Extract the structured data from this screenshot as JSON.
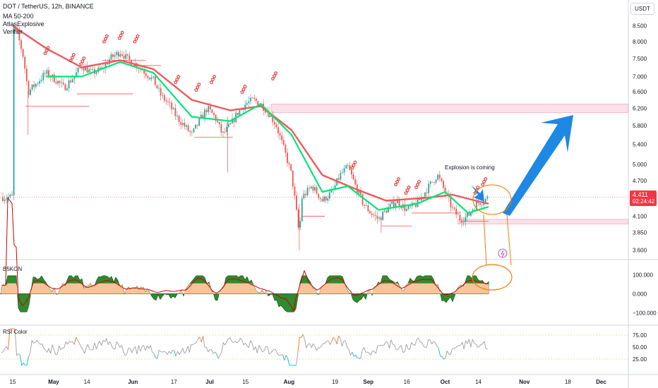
{
  "header": {
    "symbol_line": "DOT / TetherUS, 12h, BINANCE",
    "indicators": [
      "MA 50-200",
      "AtlasExplosive",
      "Verifier"
    ]
  },
  "currency_button": "USDT",
  "last_price": {
    "price": "4.411",
    "countdown": "02:24:42"
  },
  "annotation": "Explosion is coming",
  "panes": {
    "osc_title": "B5KON",
    "rsi_title": "RSI Color"
  },
  "colors": {
    "up_candle": "#26a69a",
    "down_candle": "#ef5350",
    "ma_fast": "#00e676",
    "ma_slow": "#f0585b",
    "osc_fill_pos": "#f8c49a",
    "osc_fill_green": "#2e8b2e",
    "arrow": "#1e88e5",
    "circle": "#f57c00",
    "zone": "#f8bbd0",
    "rsi_high": "#ff6d00",
    "rsi_low": "#00bcd4",
    "rsi_mid": "#9e9e9e"
  },
  "chart_data": [
    {
      "type": "candlestick",
      "timeframe": "12h",
      "y_axis": {
        "scale": "log",
        "ticks": [
          8.5,
          8.0,
          7.5,
          7.0,
          6.6,
          6.2,
          5.8,
          5.4,
          5.0,
          4.7,
          4.4,
          4.1,
          3.85,
          3.6
        ],
        "tick_labels": [
          "8.500",
          "8.000",
          "7.500",
          "7.000",
          "6.600",
          "6.200",
          "5.800",
          "5.400",
          "5.000",
          "4.700",
          "4.400",
          "4.100",
          "3.850",
          "3.600"
        ]
      },
      "x_axis": {
        "tick_labels": [
          "15",
          "May",
          "14",
          "Jun",
          "17",
          "Jul",
          "15",
          "Aug",
          "19",
          "Sep",
          "16",
          "Oct",
          "14",
          "Nov",
          "18",
          "Dec"
        ]
      },
      "close_path": [
        [
          "Apr 15",
          8.5
        ],
        [
          "Apr 17",
          8.2
        ],
        [
          "Apr 19",
          7.6
        ],
        [
          "Apr 21",
          6.6
        ],
        [
          "Apr 24",
          6.8
        ],
        [
          "Apr 28",
          7.1
        ],
        [
          "May 2",
          6.9
        ],
        [
          "May 5",
          6.7
        ],
        [
          "May 9",
          7.0
        ],
        [
          "May 12",
          7.3
        ],
        [
          "May 16",
          7.1
        ],
        [
          "May 20",
          7.2
        ],
        [
          "May 23",
          7.5
        ],
        [
          "May 27",
          7.7
        ],
        [
          "May 31",
          7.4
        ],
        [
          "Jun 3",
          7.3
        ],
        [
          "Jun 6",
          7.1
        ],
        [
          "Jun 9",
          6.9
        ],
        [
          "Jun 12",
          6.5
        ],
        [
          "Jun 15",
          6.3
        ],
        [
          "Jun 18",
          6.0
        ],
        [
          "Jun 21",
          5.8
        ],
        [
          "Jun 24",
          5.6
        ],
        [
          "Jun 27",
          5.9
        ],
        [
          "Jun 30",
          6.2
        ],
        [
          "Jul 3",
          6.0
        ],
        [
          "Jul 6",
          5.6
        ],
        [
          "Jul 9",
          5.8
        ],
        [
          "Jul 12",
          6.1
        ],
        [
          "Jul 15",
          6.3
        ],
        [
          "Jul 18",
          6.4
        ],
        [
          "Jul 21",
          6.3
        ],
        [
          "Jul 24",
          6.1
        ],
        [
          "Jul 27",
          5.8
        ],
        [
          "Jul 30",
          5.3
        ],
        [
          "Aug 2",
          4.8
        ],
        [
          "Aug 5",
          3.8
        ],
        [
          "Aug 6",
          4.4
        ],
        [
          "Aug 10",
          4.6
        ],
        [
          "Aug 14",
          4.35
        ],
        [
          "Aug 18",
          4.5
        ],
        [
          "Aug 21",
          4.8
        ],
        [
          "Aug 24",
          4.95
        ],
        [
          "Aug 27",
          4.6
        ],
        [
          "Aug 30",
          4.3
        ],
        [
          "Sep 2",
          4.15
        ],
        [
          "Sep 5",
          4.05
        ],
        [
          "Sep 8",
          4.2
        ],
        [
          "Sep 12",
          4.35
        ],
        [
          "Sep 16",
          4.2
        ],
        [
          "Sep 20",
          4.3
        ],
        [
          "Sep 24",
          4.55
        ],
        [
          "Sep 28",
          4.8
        ],
        [
          "Oct 1",
          4.5
        ],
        [
          "Oct 4",
          4.2
        ],
        [
          "Oct 7",
          4.05
        ],
        [
          "Oct 10",
          4.1
        ],
        [
          "Oct 13",
          4.3
        ],
        [
          "Oct 16",
          4.35
        ],
        [
          "Oct 18",
          4.411
        ]
      ],
      "ma_fast_path": [
        [
          "Apr 28",
          7.0
        ],
        [
          "May 12",
          7.0
        ],
        [
          "May 27",
          7.4
        ],
        [
          "Jun 9",
          7.1
        ],
        [
          "Jun 24",
          6.0
        ],
        [
          "Jul 9",
          5.9
        ],
        [
          "Jul 21",
          6.3
        ],
        [
          "Aug 2",
          5.6
        ],
        [
          "Aug 14",
          4.5
        ],
        [
          "Aug 24",
          4.6
        ],
        [
          "Sep 5",
          4.2
        ],
        [
          "Sep 20",
          4.3
        ],
        [
          "Oct 1",
          4.5
        ],
        [
          "Oct 10",
          4.15
        ],
        [
          "Oct 18",
          4.25
        ]
      ],
      "ma_slow_path": [
        [
          "Apr 15",
          8.5
        ],
        [
          "Apr 28",
          7.8
        ],
        [
          "May 12",
          7.25
        ],
        [
          "May 27",
          7.45
        ],
        [
          "Jun 9",
          7.2
        ],
        [
          "Jun 24",
          6.4
        ],
        [
          "Jul 9",
          6.15
        ],
        [
          "Jul 21",
          6.25
        ],
        [
          "Aug 2",
          5.7
        ],
        [
          "Aug 14",
          4.8
        ],
        [
          "Aug 27",
          4.55
        ],
        [
          "Sep 8",
          4.35
        ],
        [
          "Sep 24",
          4.4
        ],
        [
          "Oct 4",
          4.45
        ],
        [
          "Oct 13",
          4.35
        ],
        [
          "Oct 18",
          4.3
        ]
      ],
      "resistance_zone": [
        6.1,
        6.3
      ],
      "support_zone": [
        3.98,
        4.05
      ],
      "last_price": 4.411
    },
    {
      "type": "area",
      "title": "B5KON",
      "y_axis": {
        "ticks": [
          100,
          0,
          -100
        ],
        "tick_labels": [
          "100.000",
          "0.000",
          "−100.000"
        ]
      }
    },
    {
      "type": "line",
      "title": "RSI Color",
      "y_axis": {
        "ticks": [
          75,
          50,
          25
        ],
        "tick_labels": [
          "75.00",
          "50.00",
          "25.00"
        ]
      }
    }
  ]
}
